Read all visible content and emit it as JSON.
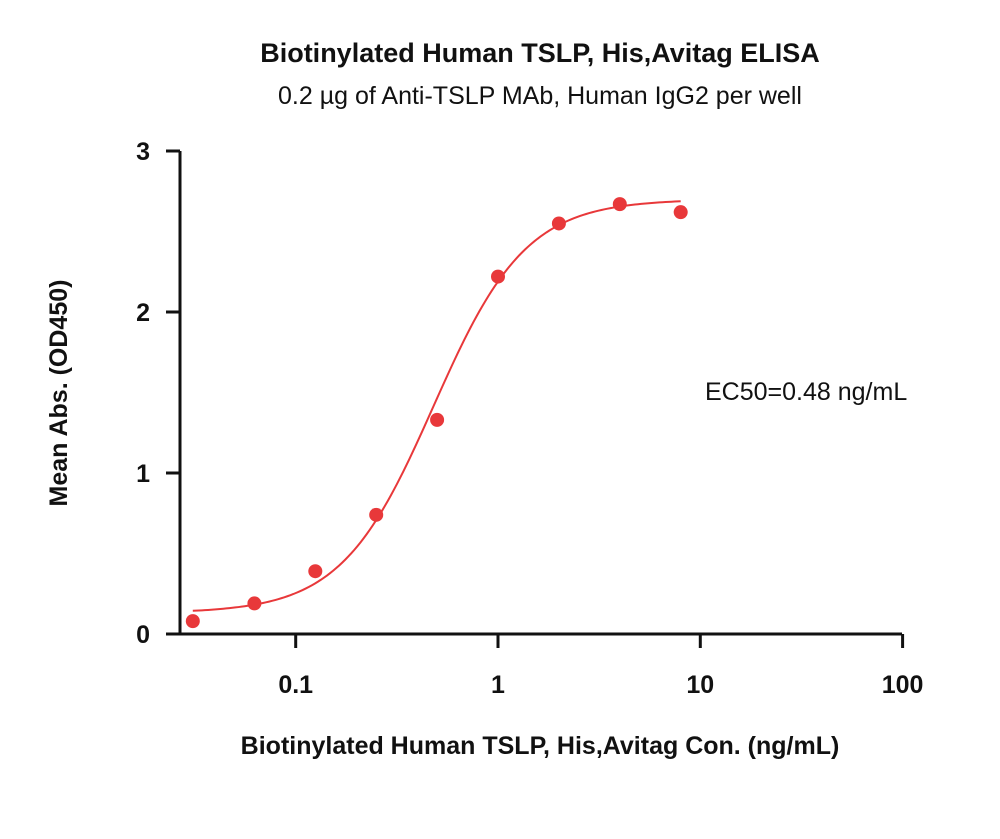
{
  "chart_data": {
    "type": "scatter",
    "title": "Biotinylated Human TSLP, His,Avitag ELISA",
    "subtitle": "0.2 µg of Anti-TSLP MAb, Human IgG2 per well",
    "xlabel": "Biotinylated Human TSLP, His,Avitag Con. (ng/mL)",
    "ylabel": "Mean Abs. (OD450)",
    "x_scale": "log",
    "xlim": [
      0.03,
      100
    ],
    "ylim": [
      0,
      3
    ],
    "x_ticks": [
      {
        "value": 0.1,
        "label": "0.1"
      },
      {
        "value": 1,
        "label": "1"
      },
      {
        "value": 10,
        "label": "10"
      },
      {
        "value": 100,
        "label": "100"
      }
    ],
    "y_ticks": [
      {
        "value": 0,
        "label": "0"
      },
      {
        "value": 1,
        "label": "1"
      },
      {
        "value": 2,
        "label": "2"
      },
      {
        "value": 3,
        "label": "3"
      }
    ],
    "grid": false,
    "color": "#e8383a",
    "annotation": "EC50=0.48 ng/mL",
    "series": [
      {
        "x": [
          0.031,
          0.0625,
          0.125,
          0.25,
          0.5,
          1,
          2,
          4,
          8
        ],
        "y": [
          0.08,
          0.19,
          0.39,
          0.74,
          1.33,
          2.22,
          2.55,
          2.67,
          2.62
        ]
      }
    ],
    "fit": {
      "type": "4PL",
      "bottom": 0.13,
      "top": 2.7,
      "ec50": 0.48,
      "hill": 1.9,
      "x_range": [
        0.031,
        8
      ]
    }
  }
}
